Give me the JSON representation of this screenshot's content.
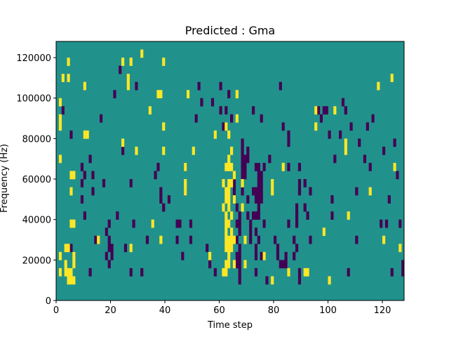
{
  "chart_data": {
    "type": "heatmap",
    "title": "Predicted : Gma",
    "xlabel": "Time step",
    "ylabel": "Frequency (Hz)",
    "xlim": [
      0,
      128
    ],
    "ylim": [
      0,
      128000
    ],
    "x_ticks": [
      "0",
      "20",
      "40",
      "60",
      "80",
      "100",
      "120"
    ],
    "y_ticks": [
      "0",
      "20000",
      "40000",
      "60000",
      "80000",
      "100000",
      "120000"
    ],
    "grid": false,
    "legend": "none",
    "colors": {
      "background": "#21918c",
      "high": "#fde725",
      "low": "#440154"
    },
    "cell_height_hz": 4000,
    "cells_high": [
      [
        1,
        96000
      ],
      [
        1,
        88000
      ],
      [
        1,
        84000
      ],
      [
        1,
        68000
      ],
      [
        1,
        20000
      ],
      [
        1,
        12000
      ],
      [
        2,
        108000
      ],
      [
        3,
        24000
      ],
      [
        3,
        16000
      ],
      [
        3,
        12000
      ],
      [
        4,
        12000
      ],
      [
        4,
        8000
      ],
      [
        4,
        24000
      ],
      [
        4,
        116000
      ],
      [
        4,
        108000
      ],
      [
        5,
        8000
      ],
      [
        5,
        12000
      ],
      [
        5,
        36000
      ],
      [
        5,
        60000
      ],
      [
        5,
        52000
      ],
      [
        6,
        8000
      ],
      [
        6,
        16000
      ],
      [
        6,
        20000
      ],
      [
        6,
        36000
      ],
      [
        6,
        60000
      ],
      [
        10,
        104000
      ],
      [
        10,
        80000
      ],
      [
        11,
        80000
      ],
      [
        15,
        28000
      ],
      [
        24,
        116000
      ],
      [
        24,
        76000
      ],
      [
        26,
        108000
      ],
      [
        26,
        104000
      ],
      [
        27,
        116000
      ],
      [
        27,
        24000
      ],
      [
        29,
        72000
      ],
      [
        31,
        120000
      ],
      [
        34,
        92000
      ],
      [
        35,
        36000
      ],
      [
        37,
        100000
      ],
      [
        38,
        100000
      ],
      [
        38,
        28000
      ],
      [
        39,
        116000
      ],
      [
        39,
        84000
      ],
      [
        39,
        72000
      ],
      [
        47,
        64000
      ],
      [
        47,
        56000
      ],
      [
        47,
        52000
      ],
      [
        48,
        100000
      ],
      [
        50,
        72000
      ],
      [
        56,
        20000
      ],
      [
        58,
        80000
      ],
      [
        61,
        56000
      ],
      [
        61,
        44000
      ],
      [
        61,
        12000
      ],
      [
        62,
        84000
      ],
      [
        62,
        64000
      ],
      [
        62,
        52000
      ],
      [
        62,
        48000
      ],
      [
        62,
        40000
      ],
      [
        62,
        36000
      ],
      [
        62,
        32000
      ],
      [
        62,
        28000
      ],
      [
        62,
        24000
      ],
      [
        62,
        16000
      ],
      [
        62,
        12000
      ],
      [
        63,
        80000
      ],
      [
        63,
        68000
      ],
      [
        63,
        64000
      ],
      [
        63,
        56000
      ],
      [
        63,
        52000
      ],
      [
        63,
        48000
      ],
      [
        63,
        44000
      ],
      [
        63,
        36000
      ],
      [
        63,
        28000
      ],
      [
        63,
        24000
      ],
      [
        63,
        20000
      ],
      [
        63,
        16000
      ],
      [
        64,
        72000
      ],
      [
        64,
        64000
      ],
      [
        64,
        56000
      ],
      [
        64,
        40000
      ],
      [
        64,
        32000
      ],
      [
        64,
        28000
      ],
      [
        64,
        24000
      ],
      [
        65,
        60000
      ],
      [
        65,
        48000
      ],
      [
        65,
        28000
      ],
      [
        65,
        16000
      ],
      [
        66,
        100000
      ],
      [
        66,
        88000
      ],
      [
        68,
        56000
      ],
      [
        68,
        44000
      ],
      [
        69,
        28000
      ],
      [
        69,
        16000
      ],
      [
        76,
        20000
      ],
      [
        79,
        56000
      ],
      [
        79,
        52000
      ],
      [
        79,
        8000
      ],
      [
        83,
        64000
      ],
      [
        85,
        12000
      ],
      [
        91,
        12000
      ],
      [
        92,
        12000
      ],
      [
        95,
        92000
      ],
      [
        95,
        84000
      ],
      [
        98,
        32000
      ],
      [
        100,
        8000
      ],
      [
        102,
        92000
      ],
      [
        106,
        76000
      ],
      [
        106,
        72000
      ],
      [
        107,
        40000
      ],
      [
        115,
        52000
      ],
      [
        118,
        104000
      ],
      [
        120,
        28000
      ],
      [
        123,
        108000
      ],
      [
        124,
        64000
      ],
      [
        126,
        24000
      ]
    ],
    "cells_low": [
      [
        2,
        92000
      ],
      [
        5,
        80000
      ],
      [
        5,
        24000
      ],
      [
        9,
        64000
      ],
      [
        9,
        56000
      ],
      [
        9,
        48000
      ],
      [
        10,
        60000
      ],
      [
        10,
        40000
      ],
      [
        12,
        68000
      ],
      [
        12,
        12000
      ],
      [
        13,
        60000
      ],
      [
        13,
        52000
      ],
      [
        14,
        28000
      ],
      [
        16,
        88000
      ],
      [
        17,
        56000
      ],
      [
        18,
        32000
      ],
      [
        18,
        20000
      ],
      [
        19,
        36000
      ],
      [
        19,
        28000
      ],
      [
        19,
        24000
      ],
      [
        19,
        16000
      ],
      [
        20,
        24000
      ],
      [
        20,
        20000
      ],
      [
        21,
        100000
      ],
      [
        22,
        40000
      ],
      [
        23,
        112000
      ],
      [
        24,
        72000
      ],
      [
        25,
        24000
      ],
      [
        27,
        56000
      ],
      [
        27,
        12000
      ],
      [
        28,
        36000
      ],
      [
        29,
        104000
      ],
      [
        31,
        12000
      ],
      [
        33,
        28000
      ],
      [
        36,
        60000
      ],
      [
        37,
        64000
      ],
      [
        38,
        52000
      ],
      [
        38,
        48000
      ],
      [
        39,
        44000
      ],
      [
        41,
        48000
      ],
      [
        44,
        36000
      ],
      [
        44,
        28000
      ],
      [
        45,
        36000
      ],
      [
        46,
        20000
      ],
      [
        47,
        64000
      ],
      [
        47,
        52000
      ],
      [
        49,
        36000
      ],
      [
        49,
        28000
      ],
      [
        51,
        88000
      ],
      [
        52,
        104000
      ],
      [
        53,
        96000
      ],
      [
        55,
        24000
      ],
      [
        56,
        16000
      ],
      [
        57,
        96000
      ],
      [
        58,
        12000
      ],
      [
        60,
        104000
      ],
      [
        60,
        92000
      ],
      [
        61,
        84000
      ],
      [
        62,
        92000
      ],
      [
        63,
        100000
      ],
      [
        64,
        88000
      ],
      [
        65,
        56000
      ],
      [
        65,
        52000
      ],
      [
        65,
        48000
      ],
      [
        66,
        44000
      ],
      [
        66,
        36000
      ],
      [
        66,
        28000
      ],
      [
        66,
        20000
      ],
      [
        66,
        16000
      ],
      [
        67,
        40000
      ],
      [
        67,
        36000
      ],
      [
        67,
        32000
      ],
      [
        67,
        24000
      ],
      [
        67,
        20000
      ],
      [
        67,
        16000
      ],
      [
        67,
        12000
      ],
      [
        67,
        8000
      ],
      [
        68,
        76000
      ],
      [
        68,
        72000
      ],
      [
        68,
        68000
      ],
      [
        68,
        64000
      ],
      [
        68,
        60000
      ],
      [
        68,
        52000
      ],
      [
        69,
        68000
      ],
      [
        69,
        64000
      ],
      [
        69,
        60000
      ],
      [
        70,
        72000
      ],
      [
        70,
        68000
      ],
      [
        70,
        48000
      ],
      [
        70,
        40000
      ],
      [
        71,
        36000
      ],
      [
        71,
        32000
      ],
      [
        71,
        28000
      ],
      [
        72,
        92000
      ],
      [
        72,
        52000
      ],
      [
        72,
        40000
      ],
      [
        73,
        64000
      ],
      [
        73,
        52000
      ],
      [
        73,
        48000
      ],
      [
        73,
        40000
      ],
      [
        73,
        32000
      ],
      [
        73,
        24000
      ],
      [
        73,
        20000
      ],
      [
        73,
        12000
      ],
      [
        74,
        64000
      ],
      [
        74,
        60000
      ],
      [
        74,
        56000
      ],
      [
        74,
        52000
      ],
      [
        74,
        48000
      ],
      [
        74,
        44000
      ],
      [
        74,
        40000
      ],
      [
        74,
        28000
      ],
      [
        75,
        88000
      ],
      [
        75,
        60000
      ],
      [
        75,
        56000
      ],
      [
        75,
        52000
      ],
      [
        75,
        48000
      ],
      [
        75,
        20000
      ],
      [
        76,
        64000
      ],
      [
        76,
        36000
      ],
      [
        77,
        8000
      ],
      [
        78,
        68000
      ],
      [
        80,
        28000
      ],
      [
        81,
        24000
      ],
      [
        81,
        20000
      ],
      [
        82,
        104000
      ],
      [
        82,
        16000
      ],
      [
        83,
        84000
      ],
      [
        83,
        16000
      ],
      [
        84,
        20000
      ],
      [
        84,
        16000
      ],
      [
        85,
        80000
      ],
      [
        85,
        76000
      ],
      [
        85,
        64000
      ],
      [
        85,
        36000
      ],
      [
        87,
        28000
      ],
      [
        87,
        20000
      ],
      [
        88,
        44000
      ],
      [
        88,
        40000
      ],
      [
        88,
        36000
      ],
      [
        88,
        24000
      ],
      [
        89,
        64000
      ],
      [
        89,
        56000
      ],
      [
        89,
        52000
      ],
      [
        89,
        12000
      ],
      [
        89,
        8000
      ],
      [
        91,
        56000
      ],
      [
        91,
        44000
      ],
      [
        92,
        40000
      ],
      [
        93,
        52000
      ],
      [
        93,
        28000
      ],
      [
        96,
        92000
      ],
      [
        97,
        88000
      ],
      [
        98,
        92000
      ],
      [
        99,
        92000
      ],
      [
        100,
        80000
      ],
      [
        101,
        48000
      ],
      [
        101,
        40000
      ],
      [
        102,
        68000
      ],
      [
        104,
        80000
      ],
      [
        105,
        96000
      ],
      [
        106,
        92000
      ],
      [
        107,
        12000
      ],
      [
        108,
        84000
      ],
      [
        110,
        52000
      ],
      [
        110,
        28000
      ],
      [
        111,
        76000
      ],
      [
        113,
        68000
      ],
      [
        114,
        84000
      ],
      [
        115,
        64000
      ],
      [
        116,
        88000
      ],
      [
        119,
        36000
      ],
      [
        120,
        72000
      ],
      [
        121,
        36000
      ],
      [
        122,
        48000
      ],
      [
        123,
        12000
      ],
      [
        124,
        76000
      ],
      [
        125,
        60000
      ],
      [
        126,
        36000
      ],
      [
        127,
        16000
      ],
      [
        127,
        12000
      ]
    ]
  }
}
